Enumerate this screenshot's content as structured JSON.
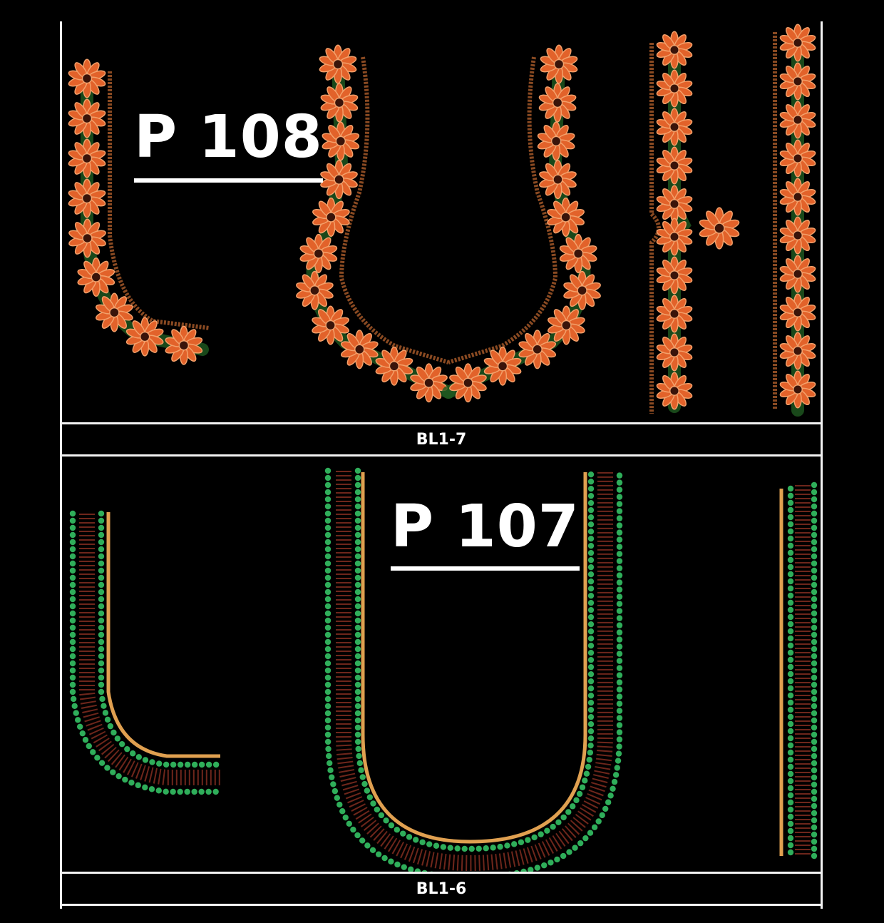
{
  "designs": [
    {
      "pattern_label": "P 108",
      "code": "BL1-7",
      "style": "flower-border",
      "colors": {
        "petal": "#e2622a",
        "petal_outline": "#f3a06a",
        "center": "#3a140a",
        "net": "#1f5a20",
        "edge": "#8a4a22"
      }
    },
    {
      "pattern_label": "P 107",
      "code": "BL1-6",
      "style": "bead-border",
      "colors": {
        "bead": "#2fae5a",
        "chevron": "#7a2a1e",
        "gold": "#e0a050"
      }
    }
  ],
  "colors": {
    "background": "#000000",
    "frame": "#f2f2f2",
    "text": "#ffffff"
  }
}
